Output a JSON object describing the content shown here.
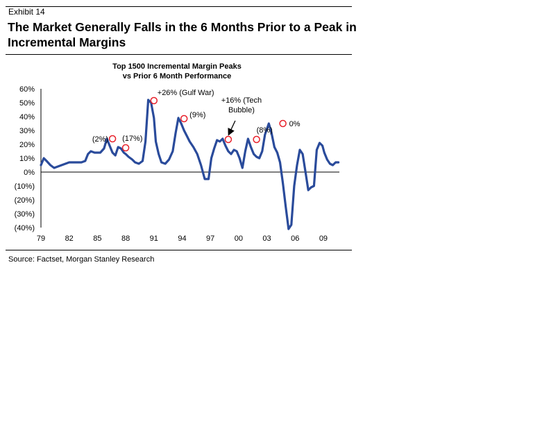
{
  "exhibit_label": "Exhibit 14",
  "title": "The Market Generally Falls in the 6 Months Prior to a Peak in Incremental Margins",
  "source": "Source: Factset, Morgan Stanley Research",
  "chart_data": {
    "type": "line",
    "title": "Top 1500 Incremental Margin Peaks vs Prior 6 Month Performance",
    "title_lines": [
      "Top 1500 Incremental Margin Peaks",
      "vs Prior 6 Month Performance"
    ],
    "xlabel": "",
    "ylabel": "",
    "xlim": [
      1979,
      2010.7
    ],
    "ylim": [
      -40,
      60
    ],
    "x_ticks": [
      1979,
      1982,
      1985,
      1988,
      1991,
      1994,
      1997,
      2000,
      2003,
      2006,
      2009
    ],
    "x_tick_labels": [
      "79",
      "82",
      "85",
      "88",
      "91",
      "94",
      "97",
      "00",
      "03",
      "06",
      "09"
    ],
    "y_ticks": [
      60,
      50,
      40,
      30,
      20,
      10,
      0,
      -10,
      -20,
      -30,
      -40
    ],
    "y_tick_labels": [
      "60%",
      "50%",
      "40%",
      "30%",
      "20%",
      "10%",
      "0%",
      "(10%)",
      "(20%)",
      "(30%)",
      "(40%)"
    ],
    "grid": false,
    "line_color": "#2A4B9B",
    "marker_color": "#E8202A",
    "series": [
      {
        "name": "Incremental Margin",
        "x": [
          1979.0,
          1979.3,
          1979.6,
          1980.0,
          1980.4,
          1980.8,
          1981.2,
          1981.6,
          1982.0,
          1982.3,
          1982.7,
          1983.0,
          1983.3,
          1983.7,
          1984.0,
          1984.3,
          1984.7,
          1985.0,
          1985.3,
          1985.7,
          1986.0,
          1986.3,
          1986.6,
          1986.9,
          1987.2,
          1987.5,
          1987.8,
          1988.0,
          1988.3,
          1988.7,
          1989.0,
          1989.4,
          1989.8,
          1990.1,
          1990.4,
          1990.7,
          1991.0,
          1991.2,
          1991.5,
          1991.8,
          1992.2,
          1992.6,
          1993.0,
          1993.3,
          1993.6,
          1993.9,
          1994.2,
          1994.5,
          1994.8,
          1995.2,
          1995.6,
          1996.0,
          1996.4,
          1996.8,
          1997.1,
          1997.4,
          1997.7,
          1998.0,
          1998.3,
          1998.6,
          1998.9,
          1999.2,
          1999.5,
          1999.8,
          2000.1,
          2000.4,
          2000.7,
          2001.0,
          2001.3,
          2001.6,
          2001.9,
          2002.2,
          2002.5,
          2002.8,
          2003.2,
          2003.5,
          2003.8,
          2004.1,
          2004.4,
          2004.7,
          2005.0,
          2005.3,
          2005.6,
          2005.9,
          2006.2,
          2006.5,
          2006.8,
          2007.1,
          2007.4,
          2007.7,
          2008.0,
          2008.3,
          2008.6,
          2008.9,
          2009.1,
          2009.4,
          2009.7,
          2010.0,
          2010.3,
          2010.6
        ],
        "y": [
          5,
          10,
          8,
          5,
          3,
          4,
          5,
          6,
          7,
          7,
          7,
          7,
          7,
          8,
          13,
          15,
          14,
          14,
          14,
          17,
          24,
          19,
          14,
          12,
          18,
          17,
          14,
          13,
          11,
          9,
          7,
          6,
          8,
          22,
          52,
          50,
          39,
          22,
          13,
          7,
          6,
          9,
          15,
          28,
          39,
          35,
          30,
          26,
          22,
          18,
          13,
          5,
          -5,
          -5,
          10,
          17,
          23,
          22,
          24,
          19,
          15,
          13,
          16,
          15,
          10,
          3,
          15,
          24,
          18,
          13,
          11,
          10,
          15,
          27,
          35,
          28,
          18,
          14,
          7,
          -8,
          -25,
          -41,
          -38,
          -10,
          5,
          16,
          13,
          0,
          -13,
          -11,
          -10,
          16,
          21,
          19,
          14,
          9,
          6,
          5,
          7,
          7
        ],
        "peaks": [
          {
            "x": 1986.6,
            "y": 24,
            "label": "(2%)"
          },
          {
            "x": 1988.0,
            "y": 17.5,
            "label": "(17%)"
          },
          {
            "x": 1991.0,
            "y": 51.5,
            "label": "+26% (Gulf War)"
          },
          {
            "x": 1994.2,
            "y": 38.5,
            "label": "(9%)"
          },
          {
            "x": 1998.9,
            "y": 23.5,
            "label": "+16% (Tech Bubble)",
            "label_lines": [
              "+16% (Tech",
              "Bubble)"
            ],
            "arrow": true
          },
          {
            "x": 2001.9,
            "y": 23.5,
            "label": "(8%)"
          },
          {
            "x": 2004.7,
            "y": 35,
            "label": "0%"
          }
        ]
      }
    ]
  }
}
